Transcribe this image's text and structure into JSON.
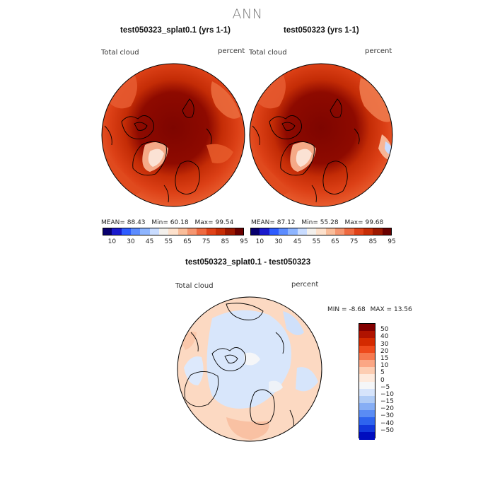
{
  "title": "ANN",
  "variable_label": "Total cloud",
  "units_label": "percent",
  "panels": [
    {
      "title": "test050323_splat0.1 (yrs 1-1)",
      "stats": {
        "mean_label": "MEAN=",
        "mean": "88.43",
        "min_label": "Min=",
        "min": "60.18",
        "max_label": "Max=",
        "max": "99.54"
      }
    },
    {
      "title": "test050323 (yrs 1-1)",
      "stats": {
        "mean_label": "MEAN=",
        "mean": "87.12",
        "min_label": "Min=",
        "min": "55.28",
        "max_label": "Max=",
        "max": "99.68"
      }
    }
  ],
  "colorbar_abs": {
    "ticks": [
      "10",
      "30",
      "45",
      "55",
      "65",
      "75",
      "85",
      "95"
    ],
    "colors": [
      "#08006e",
      "#1a1acc",
      "#2e5cff",
      "#5c8cff",
      "#8eb5ff",
      "#c9dcff",
      "#f3f0ec",
      "#fde1cc",
      "#f9bd9a",
      "#f59670",
      "#ee6a40",
      "#e04218",
      "#c72d06",
      "#9c1800",
      "#6a0000"
    ]
  },
  "diff_panel": {
    "title": "test050323_splat0.1 - test050323",
    "stats": {
      "min_label": "MIN =",
      "min": "-8.68",
      "max_label": "MAX =",
      "max": "13.56"
    }
  },
  "colorbar_diff": {
    "ticks": [
      "50",
      "40",
      "30",
      "20",
      "15",
      "10",
      "5",
      "0",
      "−5",
      "−10",
      "−15",
      "−20",
      "−30",
      "−40",
      "−50"
    ],
    "colors": [
      "#820000",
      "#b01300",
      "#d42a00",
      "#ee4a1c",
      "#f6794f",
      "#fba684",
      "#fdcdb2",
      "#feeadd",
      "#f5f6f8",
      "#d6e4fb",
      "#b0ccf6",
      "#86aef5",
      "#5a8cf4",
      "#2e64ee",
      "#1238dc",
      "#000dbf"
    ]
  }
}
